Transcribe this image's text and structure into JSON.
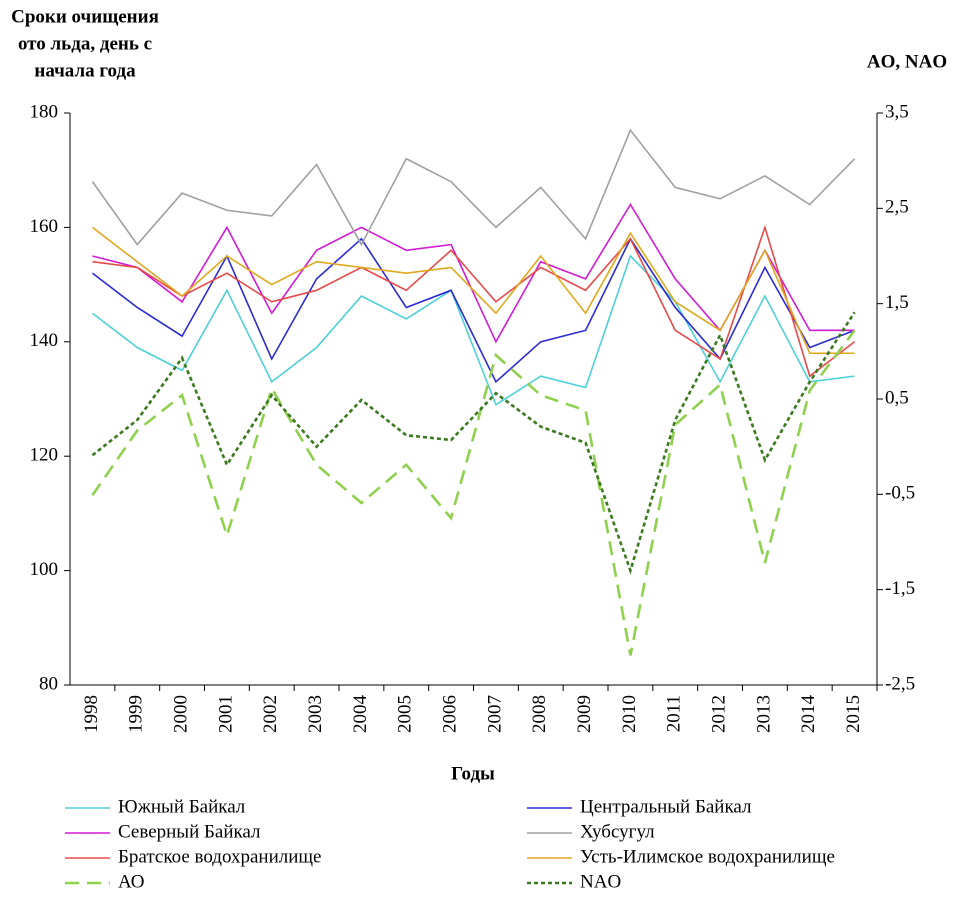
{
  "chart_data": {
    "type": "line",
    "ylabel": [
      "Сроки очищения",
      "ото льда, день с",
      "начала года"
    ],
    "y2label": "AO, NAO",
    "xlabel": "Годы",
    "categories": [
      "1998",
      "1999",
      "2000",
      "2001",
      "2002",
      "2003",
      "2004",
      "2005",
      "2006",
      "2007",
      "2008",
      "2009",
      "2010",
      "2011",
      "2012",
      "2013",
      "2014",
      "2015"
    ],
    "ylim": [
      80,
      180
    ],
    "yticks": [
      80,
      100,
      120,
      140,
      160,
      180
    ],
    "y2lim": [
      -2.5,
      3.5
    ],
    "y2ticks": [
      {
        "value": -2.5,
        "label": "-2,5"
      },
      {
        "value": -1.5,
        "label": "-1,5"
      },
      {
        "value": -0.5,
        "label": "-0,5"
      },
      {
        "value": 0.5,
        "label": "0,5"
      },
      {
        "value": 1.5,
        "label": "1,5"
      },
      {
        "value": 2.5,
        "label": "2,5"
      },
      {
        "value": 3.5,
        "label": "3,5"
      }
    ],
    "grid": false,
    "series": [
      {
        "name": "Южный  Байкал",
        "color": "#4fd0d8",
        "dash": "solid",
        "values": [
          145,
          139,
          135,
          149,
          133,
          139,
          148,
          144,
          149,
          129,
          134,
          132,
          155,
          147,
          133,
          148,
          133,
          134
        ]
      },
      {
        "name": "Центральный Байкал",
        "color": "#2b2bd6",
        "dash": "solid",
        "values": [
          152,
          146,
          141,
          155,
          137,
          151,
          158,
          146,
          149,
          133,
          140,
          142,
          158,
          146,
          137,
          153,
          139,
          142
        ]
      },
      {
        "name": "Северный Байкал",
        "color": "#d21ad6",
        "dash": "solid",
        "values": [
          155,
          153,
          147,
          160,
          145,
          156,
          160,
          156,
          157,
          140,
          154,
          151,
          164,
          151,
          142,
          156,
          142,
          142
        ]
      },
      {
        "name": "Хубсугул",
        "color": "#a0a0a0",
        "dash": "solid",
        "values": [
          168,
          157,
          166,
          163,
          162,
          171,
          157,
          172,
          168,
          160,
          167,
          158,
          177,
          167,
          165,
          169,
          164,
          172
        ]
      },
      {
        "name": "Братское водохранилище",
        "color": "#e84a4a",
        "dash": "solid",
        "values": [
          154,
          153,
          148,
          152,
          147,
          149,
          153,
          149,
          156,
          147,
          153,
          149,
          158,
          142,
          137,
          160,
          134,
          140
        ]
      },
      {
        "name": "Усть-Илимское водохранилище",
        "color": "#e0a81c",
        "dash": "solid",
        "values": [
          160,
          154,
          148,
          155,
          150,
          154,
          153,
          152,
          153,
          145,
          155,
          145,
          159,
          147,
          142,
          156,
          138,
          138
        ]
      },
      {
        "name": "АО",
        "color": "#8fd14f",
        "dash": "dashed",
        "axis": "y2",
        "values": [
          -0.51,
          0.17,
          0.54,
          -0.93,
          0.61,
          -0.19,
          -0.59,
          -0.19,
          -0.75,
          0.96,
          0.54,
          0.38,
          -2.19,
          0.23,
          0.65,
          -1.22,
          0.59,
          1.22
        ]
      },
      {
        "name": "NAO",
        "color": "#3a7a1e",
        "dash": "dotted",
        "axis": "y2",
        "values": [
          -0.09,
          0.28,
          0.93,
          -0.19,
          0.54,
          0.0,
          0.49,
          0.12,
          0.07,
          0.56,
          0.21,
          0.04,
          -1.3,
          0.28,
          1.17,
          -0.14,
          0.68,
          1.41
        ]
      }
    ]
  }
}
